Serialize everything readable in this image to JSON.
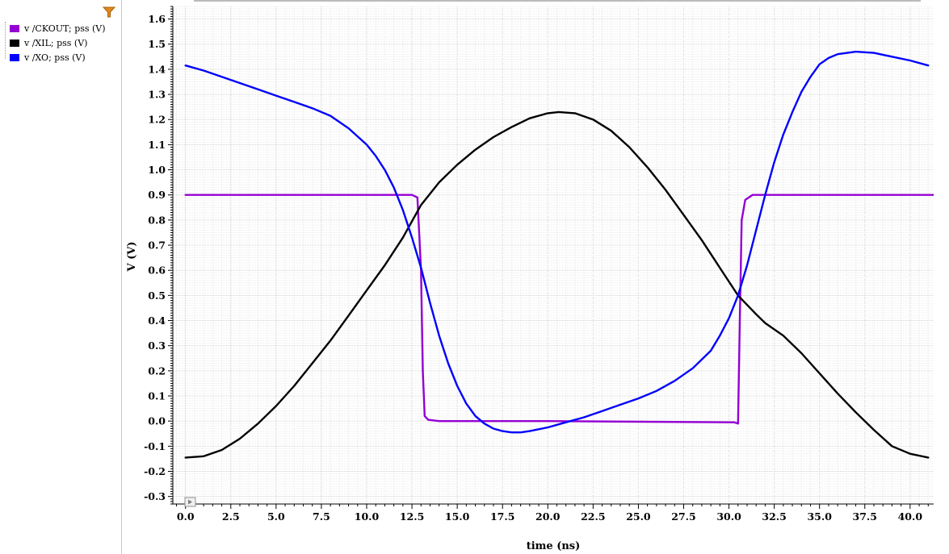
{
  "chart_data": {
    "type": "line",
    "title": "",
    "xlabel": "time (ns)",
    "ylabel": "V (V)",
    "xlim": [
      -0.7,
      41.3
    ],
    "ylim": [
      -0.33,
      1.65
    ],
    "x_ticks": [
      "0.0",
      "2.5",
      "5.0",
      "7.5",
      "10.0",
      "12.5",
      "15.0",
      "17.5",
      "20.0",
      "22.5",
      "25.0",
      "27.5",
      "30.0",
      "32.5",
      "35.0",
      "37.5",
      "40.0"
    ],
    "y_ticks": [
      "1.6",
      "1.5",
      "1.4",
      "1.3",
      "1.2",
      "1.1",
      "1.0",
      "0.9",
      "0.8",
      "0.7",
      "0.6",
      "0.5",
      "0.4",
      "0.3",
      "0.2",
      "0.1",
      "0.0",
      "-0.1",
      "-0.2",
      "-0.3"
    ],
    "grid": true,
    "legend_position": "top-left",
    "series": [
      {
        "name": "v /CKOUT; pss (V)",
        "color": "#9400d3",
        "x": [
          0,
          12.5,
          12.8,
          13.0,
          13.1,
          13.2,
          13.4,
          14.0,
          20.0,
          30.3,
          30.5,
          30.6,
          30.7,
          30.9,
          31.3,
          41.3
        ],
        "y": [
          0.9,
          0.9,
          0.89,
          0.6,
          0.2,
          0.02,
          0.005,
          0.0,
          0.0,
          -0.005,
          -0.01,
          0.4,
          0.8,
          0.88,
          0.9,
          0.9
        ]
      },
      {
        "name": "v /XIL; pss (V)",
        "color": "#000000",
        "x": [
          0,
          1.0,
          2.0,
          3.0,
          4.0,
          5.0,
          6.0,
          7.0,
          8.0,
          9.0,
          10.0,
          11.0,
          12.0,
          13.0,
          14.0,
          15.0,
          16.0,
          17.0,
          18.0,
          19.0,
          20.0,
          20.6,
          21.5,
          22.5,
          23.5,
          24.5,
          25.5,
          26.5,
          27.5,
          28.5,
          29.5,
          30.5,
          31.5,
          32.0,
          33.0,
          34.0,
          35.0,
          36.0,
          37.0,
          38.0,
          39.0,
          40.0,
          41.0
        ],
        "y": [
          -0.145,
          -0.14,
          -0.115,
          -0.07,
          -0.01,
          0.06,
          0.14,
          0.23,
          0.32,
          0.42,
          0.52,
          0.62,
          0.73,
          0.86,
          0.95,
          1.02,
          1.08,
          1.13,
          1.17,
          1.205,
          1.225,
          1.23,
          1.225,
          1.2,
          1.155,
          1.09,
          1.01,
          0.92,
          0.82,
          0.72,
          0.61,
          0.5,
          0.425,
          0.39,
          0.34,
          0.27,
          0.19,
          0.11,
          0.035,
          -0.035,
          -0.1,
          -0.13,
          -0.145
        ]
      },
      {
        "name": "v /XO; pss (V)",
        "color": "#0000ff",
        "x": [
          0,
          1.0,
          2.0,
          3.0,
          4.0,
          5.0,
          6.0,
          7.0,
          8.0,
          9.0,
          10.0,
          10.5,
          11.0,
          11.5,
          12.0,
          12.5,
          13.0,
          13.5,
          14.0,
          14.5,
          15.0,
          15.5,
          16.0,
          16.5,
          17.0,
          17.5,
          18.0,
          18.5,
          19.0,
          20.0,
          21.0,
          22.0,
          23.0,
          24.0,
          25.0,
          26.0,
          27.0,
          28.0,
          29.0,
          29.5,
          30.0,
          30.5,
          31.0,
          31.5,
          32.0,
          32.5,
          33.0,
          33.5,
          34.0,
          34.5,
          35.0,
          35.5,
          36.0,
          37.0,
          38.0,
          39.0,
          40.0,
          41.0
        ],
        "y": [
          1.415,
          1.395,
          1.37,
          1.345,
          1.32,
          1.295,
          1.27,
          1.245,
          1.215,
          1.165,
          1.1,
          1.055,
          1.0,
          0.93,
          0.84,
          0.73,
          0.61,
          0.47,
          0.34,
          0.23,
          0.14,
          0.07,
          0.02,
          -0.01,
          -0.03,
          -0.04,
          -0.045,
          -0.045,
          -0.04,
          -0.025,
          -0.005,
          0.015,
          0.04,
          0.065,
          0.09,
          0.12,
          0.16,
          0.21,
          0.28,
          0.34,
          0.41,
          0.5,
          0.62,
          0.76,
          0.9,
          1.03,
          1.14,
          1.23,
          1.31,
          1.37,
          1.42,
          1.445,
          1.46,
          1.47,
          1.465,
          1.45,
          1.435,
          1.415
        ]
      }
    ]
  }
}
